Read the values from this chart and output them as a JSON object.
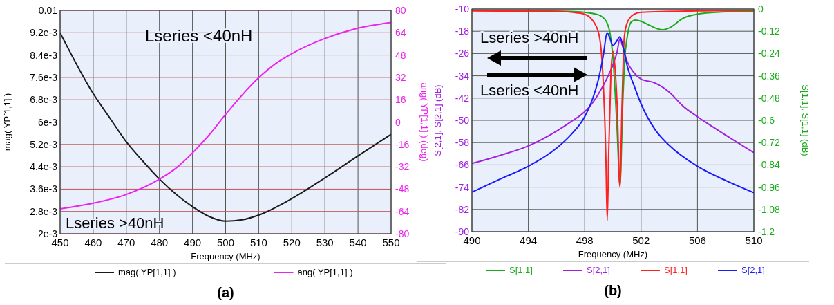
{
  "chart_data": [
    {
      "type": "line",
      "xlabel": "Frequency (MHz)",
      "ylabel": "mag( YP[1,1] )",
      "y2label": "ang( YP[1,1] ) (deg)",
      "xlim": [
        450,
        550
      ],
      "xticks": [
        450,
        460,
        470,
        480,
        490,
        500,
        510,
        520,
        530,
        540,
        550
      ],
      "ylim": [
        0.002,
        0.01
      ],
      "yticks": [
        {
          "value": 0.002,
          "label": "2e-3"
        },
        {
          "value": 0.0028,
          "label": "2.8e-3"
        },
        {
          "value": 0.0036,
          "label": "3.6e-3"
        },
        {
          "value": 0.0044,
          "label": "4.4e-3"
        },
        {
          "value": 0.0052,
          "label": "5.2e-3"
        },
        {
          "value": 0.006,
          "label": "6e-3"
        },
        {
          "value": 0.0068,
          "label": "6.8e-3"
        },
        {
          "value": 0.0076,
          "label": "7.6e-3"
        },
        {
          "value": 0.0084,
          "label": "8.4e-3"
        },
        {
          "value": 0.0092,
          "label": "9.2e-3"
        },
        0.01
      ],
      "y2lim": [
        -80,
        80
      ],
      "y2ticks": [
        -80,
        -64,
        -48,
        -32,
        -16,
        0,
        16,
        32,
        48,
        64,
        80
      ],
      "grid": true,
      "legend": "bottom",
      "annotations": [
        "Lseries <40nH",
        "Lseries >40nH",
        "(a)"
      ],
      "series": [
        {
          "name": "mag( YP[1,1] )",
          "color": "#1a1a1a",
          "x": [
            450,
            460,
            465,
            470,
            475,
            480,
            490,
            495,
            500,
            505,
            510,
            520,
            530,
            540,
            550
          ],
          "values": [
            0.0092,
            0.00702,
            0.00615,
            0.00529,
            0.0046,
            0.00396,
            0.00297,
            0.00262,
            0.00245,
            0.0025,
            0.00267,
            0.00326,
            0.004,
            0.00479,
            0.00556
          ]
        },
        {
          "name": "ang( YP[1,1] )",
          "color": "#ee22ee",
          "axis": "y2",
          "x": [
            450,
            460,
            470,
            480,
            485,
            490,
            495,
            500,
            505,
            510,
            515,
            520,
            530,
            540,
            550
          ],
          "values": [
            -62.2,
            -58.1,
            -51.8,
            -40.9,
            -33,
            -22.1,
            -9.3,
            5.5,
            19.4,
            31.8,
            41.7,
            49,
            59.9,
            67.2,
            71.3
          ]
        }
      ]
    },
    {
      "type": "line",
      "xlabel": "Frequency (MHz)",
      "ylabel": "S[2,1], S[2,1] (dB)",
      "y2label": "S[1,1], S[1,1] (dB)",
      "xlim": [
        490,
        510
      ],
      "xticks": [
        490,
        494,
        498,
        502,
        506,
        510
      ],
      "ylim": [
        -90,
        -10
      ],
      "yticks": [
        -90,
        -82,
        -74,
        -66,
        -58,
        -50,
        -42,
        -34,
        -26,
        -18,
        -10
      ],
      "y2lim": [
        -1.2,
        0
      ],
      "y2ticks": [
        -1.2,
        -1.08,
        -0.96,
        -0.84,
        -0.72,
        -0.6,
        -0.48,
        -0.36,
        -0.24,
        -0.12,
        0
      ],
      "grid": true,
      "legend": "bottom",
      "annotations": [
        "Lseries >40nH",
        "Lseries <40nH",
        "(b)"
      ],
      "series": [
        {
          "name": "S[1,1]",
          "color": "#1aaa1a",
          "axis": "y2",
          "x": [
            490,
            497,
            498,
            499,
            499.5,
            499.8,
            500,
            500.3,
            500.5,
            500.7,
            500.85,
            501,
            501.3,
            501.6,
            502,
            502.5,
            503,
            503.5,
            504,
            505,
            506,
            508,
            510
          ],
          "values": [
            -0.007,
            -0.013,
            -0.018,
            -0.032,
            -0.063,
            -0.133,
            -0.26,
            -0.65,
            -0.95,
            -0.51,
            -0.26,
            -0.16,
            -0.07,
            -0.06,
            -0.066,
            -0.084,
            -0.102,
            -0.112,
            -0.102,
            -0.049,
            -0.028,
            -0.015,
            -0.011
          ]
        },
        {
          "name": "S[2,1]",
          "color": "#a020e0",
          "x": [
            490,
            492,
            494,
            496,
            497,
            498,
            498.5,
            499,
            499.5,
            500,
            500.3,
            500.5,
            500.7,
            501,
            501.5,
            502,
            503,
            503.5,
            504,
            505,
            506,
            508,
            510
          ],
          "values": [
            -65.5,
            -62.6,
            -59.2,
            -53.9,
            -50.6,
            -46.9,
            -44.1,
            -40.3,
            -35.7,
            -30.1,
            -25.4,
            -20.7,
            -23.5,
            -28.7,
            -32.9,
            -35.2,
            -36.6,
            -38,
            -39.9,
            -45,
            -48.7,
            -55.3,
            -61.6
          ]
        },
        {
          "name": "S[1,1]",
          "color": "#ff2020",
          "x": [
            490,
            496,
            497.5,
            498,
            498.5,
            499,
            499.3,
            499.5,
            499.6,
            499.7,
            499.85,
            500,
            500.15,
            500.3,
            500.5,
            500.65,
            500.8,
            501,
            501.5,
            502,
            506,
            510
          ],
          "values": [
            -10.7,
            -10.9,
            -11.4,
            -11.9,
            -13.7,
            -18.9,
            -34.7,
            -62.7,
            -86,
            -62.7,
            -34.7,
            -25.2,
            -31,
            -44.1,
            -74,
            -44.1,
            -20.7,
            -15.1,
            -11.9,
            -11.2,
            -10.7,
            -10.5
          ]
        },
        {
          "name": "S[2,1]",
          "color": "#1a1aff",
          "x": [
            490,
            492,
            494,
            496,
            497,
            498,
            498.5,
            499,
            499.3,
            499.6,
            499.8,
            500,
            500.2,
            500.5,
            500.7,
            501,
            501.5,
            502,
            503,
            504,
            506,
            508,
            510
          ],
          "values": [
            -75.8,
            -71.1,
            -66.5,
            -60,
            -55.3,
            -48.7,
            -43.1,
            -34.7,
            -27.3,
            -18.6,
            -20.7,
            -23.1,
            -22.1,
            -20,
            -23.1,
            -30.1,
            -37.5,
            -44.1,
            -53.4,
            -59,
            -66.5,
            -71.6,
            -76
          ]
        }
      ]
    }
  ]
}
